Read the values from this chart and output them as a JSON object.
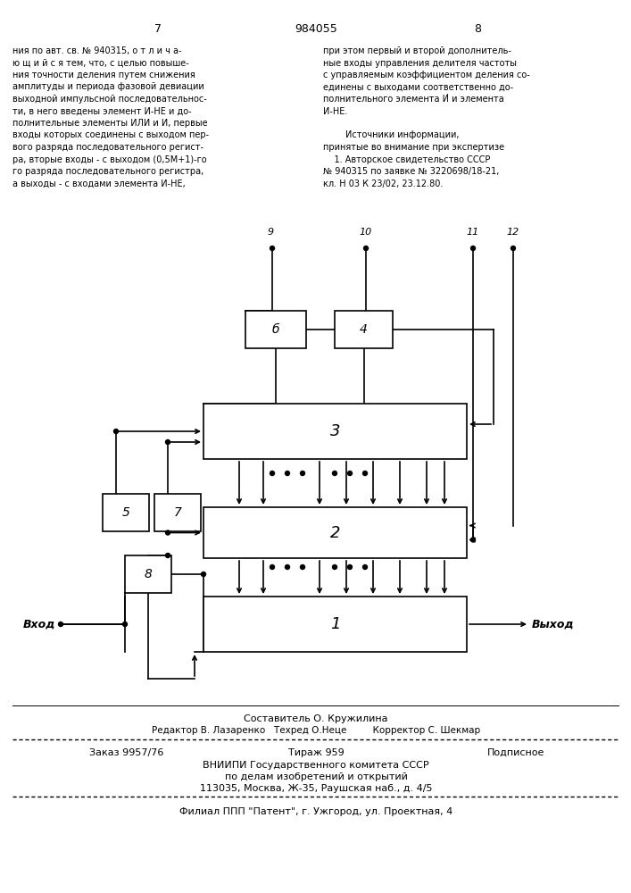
{
  "page_num_left": "7",
  "page_num_center": "984055",
  "page_num_right": "8",
  "left_text": [
    "ния по авт. св. № 940315, о т л и ч а-",
    "ю щ и й с я тем, что, с целью повыше-",
    "ния точности деления путем снижения",
    "амплитуды и периода фазовой девиации",
    "выходной импульсной последовательнос-",
    "ти, в него введены элемент И-НЕ и до-",
    "полнительные элементы ИЛИ и И, первые",
    "входы которых соединены с выходом пер-",
    "вого разряда последовательного регист-",
    "ра, вторые входы - с выходом (0,5М+1)-го",
    "го разряда последовательного регистра,",
    "а выходы - с входами элемента И-НЕ,"
  ],
  "right_text": [
    "при этом первый и второй дополнитель-",
    "ные входы управления делителя частоты",
    "с управляемым коэффициентом деления со-",
    "единены с выходами соответственно до-",
    "полнительного элемента И́ и элемента",
    "И-НЕ.",
    "",
    "        Источники информации,",
    "принятые во внимание при экспертизе",
    "    1. Авторское свидетельство СССР",
    "№ 940315 по заявке № 3220698/18-21,",
    "кл. Н 03 К 23/02, 23.12.80."
  ],
  "composer": "Составитель О. Кружилина",
  "editor_line": "Редактор В. Лазаренко   Техред О.Неце         Корректор С. Шекмар",
  "order_line1": "Заказ 9957/76",
  "order_line2": "Тираж 959",
  "order_line3": "Подписное",
  "vnipi_line1": "ВНИИПИ Государственного комитета СССР",
  "vnipi_line2": "по делам изобретений и открытий",
  "vnipi_line3": "113035, Москва, Ж-35, Раушская наб., д. 4/5",
  "filial_line": "Филиал ППП \"Патент\", г. Ужгород, ул. Проектная, 4",
  "bg_color": "#ffffff"
}
